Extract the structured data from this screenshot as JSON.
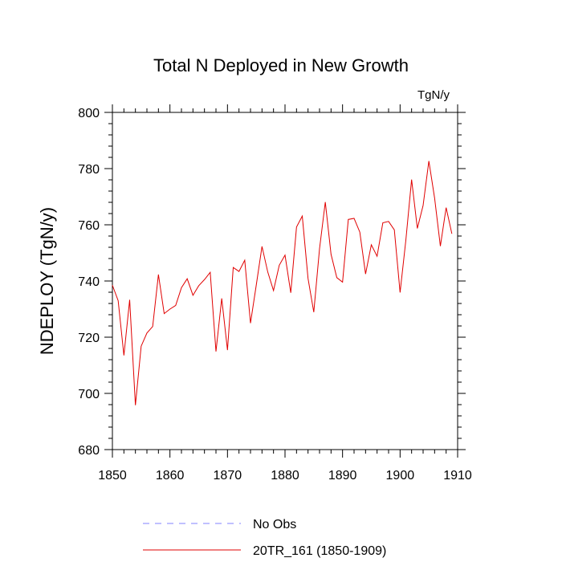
{
  "chart_data": {
    "type": "line",
    "title": "Total N Deployed in New Growth",
    "units": "TgN/y",
    "xlabel": "",
    "ylabel": "NDEPLOY  (TgN/y)",
    "xlim": [
      1850,
      1910
    ],
    "ylim": [
      680,
      800
    ],
    "xticks": [
      1850,
      1860,
      1870,
      1880,
      1890,
      1900,
      1910
    ],
    "yticks": [
      680,
      700,
      720,
      740,
      760,
      780,
      800
    ],
    "grid": false,
    "legend_position": "bottom-center",
    "series": [
      {
        "name": "No Obs",
        "color": "#8080ff",
        "style": "dashed",
        "x": [],
        "values": []
      },
      {
        "name": "20TR_161 (1850-1909)",
        "color": "#e00000",
        "style": "solid",
        "x": [
          1850,
          1851,
          1852,
          1853,
          1854,
          1855,
          1856,
          1857,
          1858,
          1859,
          1860,
          1861,
          1862,
          1863,
          1864,
          1865,
          1866,
          1867,
          1868,
          1869,
          1870,
          1871,
          1872,
          1873,
          1874,
          1875,
          1876,
          1877,
          1878,
          1879,
          1880,
          1881,
          1882,
          1883,
          1884,
          1885,
          1886,
          1887,
          1888,
          1889,
          1890,
          1891,
          1892,
          1893,
          1894,
          1895,
          1896,
          1897,
          1898,
          1899,
          1900,
          1901,
          1902,
          1903,
          1904,
          1905,
          1906,
          1907,
          1908,
          1909
        ],
        "values": [
          738.5,
          733,
          713.5,
          733.3,
          695.8,
          716.8,
          721.5,
          723.8,
          742.3,
          728.4,
          730,
          731.3,
          737.6,
          740.8,
          734.9,
          738.3,
          740.5,
          743.1,
          714.9,
          733.8,
          715.4,
          744.8,
          743.4,
          747.4,
          725,
          738.5,
          752.3,
          743.2,
          736.6,
          745.6,
          749.2,
          735.8,
          759.2,
          763.1,
          740.9,
          728.9,
          751.5,
          768.1,
          749.5,
          741.2,
          739.6,
          761.9,
          762.3,
          757.4,
          742.5,
          752.9,
          748.8,
          760.7,
          761.2,
          758.2,
          735.9,
          754.5,
          776.1,
          758.7,
          766.9,
          782.7,
          769.5,
          752.4,
          766.1,
          756.8
        ]
      }
    ]
  }
}
